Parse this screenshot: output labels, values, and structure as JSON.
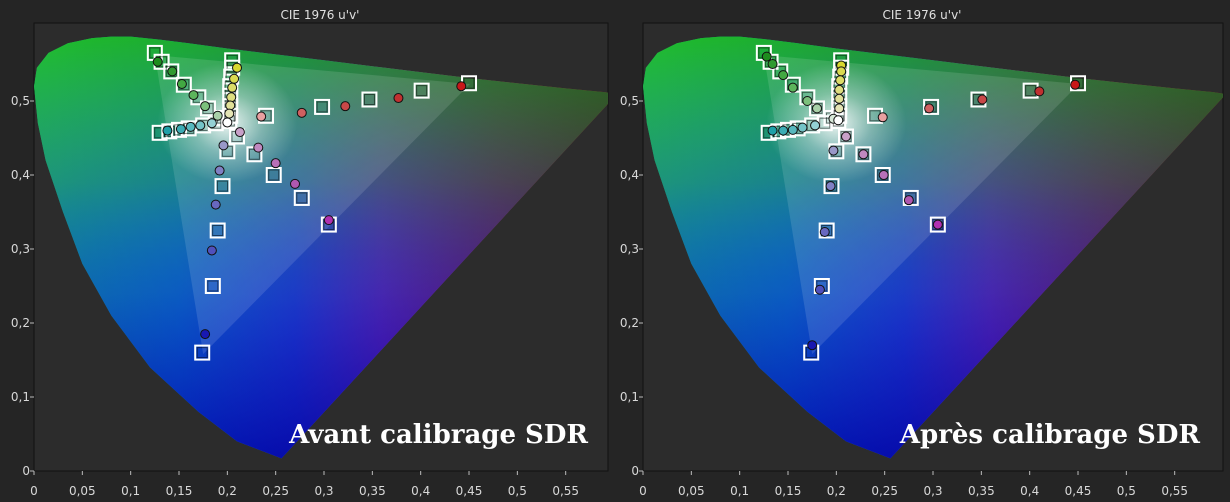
{
  "chart_data": [
    {
      "type": "scatter",
      "title": "CIE 1976 u'v'",
      "caption": "Avant calibrage SDR",
      "xlim": [
        0,
        0.6
      ],
      "ylim": [
        0,
        0.6
      ],
      "x_ticks": [
        0,
        0.05,
        0.1,
        0.15,
        0.2,
        0.25,
        0.3,
        0.35,
        0.4,
        0.45,
        0.5,
        0.55
      ],
      "x_tick_labels": [
        "0",
        "0,05",
        "0,1",
        "0,15",
        "0,2",
        "0,25",
        "0,3",
        "0,35",
        "0,4",
        "0,45",
        "0,5",
        "0,55"
      ],
      "y_ticks": [
        0,
        0.1,
        0.2,
        0.3,
        0.4,
        0.5
      ],
      "y_tick_labels": [
        "0",
        "0,1",
        "0,2",
        "0,3",
        "0,4",
        "0,5"
      ],
      "grid": false,
      "series": [
        {
          "marker": "square",
          "values": [
            [
              0.125,
              0.565
            ],
            [
              0.132,
              0.553
            ],
            [
              0.142,
              0.54
            ],
            [
              0.155,
              0.522
            ],
            [
              0.17,
              0.505
            ],
            [
              0.18,
              0.49
            ],
            [
              0.195,
              0.477
            ],
            [
              0.202,
              0.473
            ],
            [
              0.13,
              0.457
            ],
            [
              0.14,
              0.459
            ],
            [
              0.15,
              0.461
            ],
            [
              0.16,
              0.463
            ],
            [
              0.175,
              0.467
            ],
            [
              0.188,
              0.47
            ],
            [
              0.205,
              0.555
            ],
            [
              0.205,
              0.545
            ],
            [
              0.204,
              0.533
            ],
            [
              0.203,
              0.52
            ],
            [
              0.203,
              0.507
            ],
            [
              0.203,
              0.493
            ],
            [
              0.203,
              0.48
            ],
            [
              0.24,
              0.48
            ],
            [
              0.298,
              0.492
            ],
            [
              0.347,
              0.502
            ],
            [
              0.401,
              0.514
            ],
            [
              0.45,
              0.524
            ],
            [
              0.21,
              0.452
            ],
            [
              0.228,
              0.428
            ],
            [
              0.248,
              0.4
            ],
            [
              0.277,
              0.369
            ],
            [
              0.305,
              0.333
            ],
            [
              0.2,
              0.432
            ],
            [
              0.195,
              0.385
            ],
            [
              0.19,
              0.325
            ],
            [
              0.185,
              0.25
            ],
            [
              0.174,
              0.16
            ]
          ],
          "colors": [
            "#2a9d2a",
            "#3aa83a",
            "#4ab44a",
            "#5ac05a",
            "#7ac87a",
            "#a0d090",
            "#c8e0c0",
            "#ffffff",
            "#20a8b0",
            "#40b4bc",
            "#60c0c8",
            "#80ccd2",
            "#a0d8dc",
            "#c8e6ea",
            "#e8e840",
            "#e8e860",
            "#e8e878",
            "#eaea90",
            "#ececa8",
            "#eeeec0",
            "#f2f2d8",
            "#f0a0a0",
            "#ec8080",
            "#e86060",
            "#e24040",
            "#d82020",
            "#e8b8e8",
            "#e0a0e0",
            "#d888d8",
            "#cc66cc",
            "#c040c0",
            "#b0b0f0",
            "#9090ea",
            "#7070e4",
            "#4040d8",
            "#1010c8"
          ]
        },
        {
          "marker": "circle",
          "values": [
            [
              0.128,
              0.553
            ],
            [
              0.143,
              0.54
            ],
            [
              0.153,
              0.523
            ],
            [
              0.165,
              0.508
            ],
            [
              0.177,
              0.493
            ],
            [
              0.19,
              0.48
            ],
            [
              0.2,
              0.471
            ],
            [
              0.138,
              0.46
            ],
            [
              0.152,
              0.462
            ],
            [
              0.162,
              0.465
            ],
            [
              0.172,
              0.467
            ],
            [
              0.184,
              0.47
            ],
            [
              0.21,
              0.545
            ],
            [
              0.207,
              0.53
            ],
            [
              0.205,
              0.518
            ],
            [
              0.204,
              0.505
            ],
            [
              0.203,
              0.494
            ],
            [
              0.202,
              0.483
            ],
            [
              0.235,
              0.479
            ],
            [
              0.277,
              0.484
            ],
            [
              0.322,
              0.493
            ],
            [
              0.377,
              0.504
            ],
            [
              0.442,
              0.52
            ],
            [
              0.213,
              0.458
            ],
            [
              0.232,
              0.437
            ],
            [
              0.25,
              0.416
            ],
            [
              0.27,
              0.388
            ],
            [
              0.305,
              0.339
            ],
            [
              0.196,
              0.44
            ],
            [
              0.192,
              0.406
            ],
            [
              0.188,
              0.36
            ],
            [
              0.184,
              0.298
            ],
            [
              0.177,
              0.185
            ]
          ],
          "colors": [
            "#1e8c1e",
            "#309a30",
            "#42a842",
            "#5cb45c",
            "#7cc07c",
            "#a8d0a8",
            "#ffffff",
            "#20a0a8",
            "#3cacb4",
            "#58b8be",
            "#74c4c8",
            "#94d0d4",
            "#d8d830",
            "#dada50",
            "#dcdc68",
            "#dede80",
            "#e0e098",
            "#e4e4b4",
            "#e8a0a0",
            "#d06060",
            "#c84848",
            "#c03030",
            "#c81818",
            "#c8a0c8",
            "#c088c0",
            "#b870b8",
            "#b058b0",
            "#b030b0",
            "#9898c8",
            "#8080c4",
            "#6868c0",
            "#5050bc",
            "#1818b0"
          ]
        }
      ]
    },
    {
      "type": "scatter",
      "title": "CIE 1976 u'v'",
      "caption": "Après calibrage SDR",
      "xlim": [
        0,
        0.6
      ],
      "ylim": [
        0,
        0.6
      ],
      "x_ticks": [
        0,
        0.05,
        0.1,
        0.15,
        0.2,
        0.25,
        0.3,
        0.35,
        0.4,
        0.45,
        0.5,
        0.55
      ],
      "x_tick_labels": [
        "0",
        "0,05",
        "0,1",
        "0,15",
        "0,2",
        "0,25",
        "0,3",
        "0,35",
        "0,4",
        "0,45",
        "0,5",
        "0,55"
      ],
      "y_ticks": [
        0,
        0.1,
        0.2,
        0.3,
        0.4,
        0.5
      ],
      "y_tick_labels": [
        "0",
        "0,1",
        "0,2",
        "0,3",
        "0,4",
        "0,5"
      ],
      "grid": false,
      "series": [
        {
          "marker": "square",
          "values": [
            [
              0.125,
              0.565
            ],
            [
              0.132,
              0.553
            ],
            [
              0.142,
              0.54
            ],
            [
              0.155,
              0.522
            ],
            [
              0.17,
              0.505
            ],
            [
              0.18,
              0.49
            ],
            [
              0.195,
              0.477
            ],
            [
              0.202,
              0.473
            ],
            [
              0.13,
              0.457
            ],
            [
              0.14,
              0.459
            ],
            [
              0.15,
              0.461
            ],
            [
              0.16,
              0.463
            ],
            [
              0.175,
              0.467
            ],
            [
              0.188,
              0.47
            ],
            [
              0.205,
              0.555
            ],
            [
              0.205,
              0.545
            ],
            [
              0.204,
              0.533
            ],
            [
              0.203,
              0.52
            ],
            [
              0.203,
              0.507
            ],
            [
              0.203,
              0.493
            ],
            [
              0.203,
              0.48
            ],
            [
              0.24,
              0.48
            ],
            [
              0.298,
              0.492
            ],
            [
              0.347,
              0.502
            ],
            [
              0.401,
              0.514
            ],
            [
              0.45,
              0.524
            ],
            [
              0.21,
              0.452
            ],
            [
              0.228,
              0.428
            ],
            [
              0.248,
              0.4
            ],
            [
              0.277,
              0.369
            ],
            [
              0.305,
              0.333
            ],
            [
              0.2,
              0.432
            ],
            [
              0.195,
              0.385
            ],
            [
              0.19,
              0.325
            ],
            [
              0.185,
              0.25
            ],
            [
              0.174,
              0.16
            ]
          ],
          "colors": [
            "#2a9d2a",
            "#3aa83a",
            "#4ab44a",
            "#5ac05a",
            "#7ac87a",
            "#a0d090",
            "#c8e0c0",
            "#ffffff",
            "#20a8b0",
            "#40b4bc",
            "#60c0c8",
            "#80ccd2",
            "#a0d8dc",
            "#c8e6ea",
            "#e8e840",
            "#e8e860",
            "#e8e878",
            "#eaea90",
            "#ececa8",
            "#eeeec0",
            "#f2f2d8",
            "#f0a0a0",
            "#ec8080",
            "#e86060",
            "#e24040",
            "#d82020",
            "#e8b8e8",
            "#e0a0e0",
            "#d888d8",
            "#cc66cc",
            "#c040c0",
            "#b0b0f0",
            "#9090ea",
            "#7070e4",
            "#4040d8",
            "#1010c8"
          ]
        },
        {
          "marker": "circle",
          "values": [
            [
              0.128,
              0.56
            ],
            [
              0.134,
              0.55
            ],
            [
              0.145,
              0.535
            ],
            [
              0.155,
              0.518
            ],
            [
              0.17,
              0.5
            ],
            [
              0.18,
              0.49
            ],
            [
              0.197,
              0.476
            ],
            [
              0.202,
              0.474
            ],
            [
              0.134,
              0.46
            ],
            [
              0.145,
              0.46
            ],
            [
              0.155,
              0.461
            ],
            [
              0.165,
              0.464
            ],
            [
              0.178,
              0.467
            ],
            [
              0.205,
              0.548
            ],
            [
              0.205,
              0.54
            ],
            [
              0.204,
              0.528
            ],
            [
              0.203,
              0.515
            ],
            [
              0.203,
              0.503
            ],
            [
              0.203,
              0.49
            ],
            [
              0.248,
              0.478
            ],
            [
              0.296,
              0.49
            ],
            [
              0.351,
              0.502
            ],
            [
              0.41,
              0.513
            ],
            [
              0.447,
              0.522
            ],
            [
              0.21,
              0.452
            ],
            [
              0.228,
              0.428
            ],
            [
              0.249,
              0.4
            ],
            [
              0.275,
              0.366
            ],
            [
              0.305,
              0.333
            ],
            [
              0.197,
              0.433
            ],
            [
              0.194,
              0.385
            ],
            [
              0.188,
              0.323
            ],
            [
              0.183,
              0.245
            ],
            [
              0.175,
              0.17
            ]
          ],
          "colors": [
            "#1e8c1e",
            "#309a30",
            "#42a842",
            "#5cb45c",
            "#7cc07c",
            "#a8d0a8",
            "#d8e8d8",
            "#ffffff",
            "#20a0a8",
            "#3cacb4",
            "#58b8be",
            "#74c4c8",
            "#94d0d4",
            "#d8d830",
            "#dada50",
            "#dcdc68",
            "#dede80",
            "#e0e098",
            "#e4e4b4",
            "#e8a0a0",
            "#d06060",
            "#c84848",
            "#c03030",
            "#c81818",
            "#c8a0c8",
            "#c088c0",
            "#b870b8",
            "#b058b0",
            "#b030b0",
            "#9898c8",
            "#8080c4",
            "#6868c0",
            "#5050bc",
            "#1818b0"
          ]
        }
      ]
    }
  ]
}
